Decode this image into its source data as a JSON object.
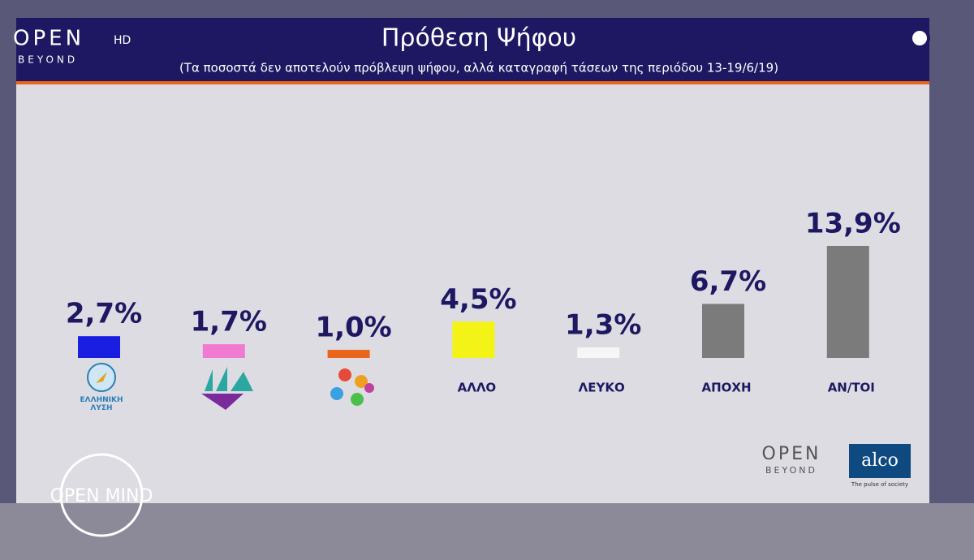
{
  "chart_data": {
    "type": "bar",
    "title": "Πρόθεση Ψήφου",
    "subtitle": "(Τα ποσοστά δεν αποτελούν πρόβλεψη ψήφου, αλλά καταγραφή τάσεων της περιόδου 13-19/6/19)",
    "categories": [
      "ΕΛΛΗΝΙΚΗ ΛΥΣΗ",
      null,
      null,
      "ΑΛΛΟ",
      "ΛΕΥΚΟ",
      "ΑΠΟΧΗ",
      "ΑΝ/ΤΟΙ"
    ],
    "values": [
      2.7,
      1.7,
      1.0,
      4.5,
      1.3,
      6.7,
      13.9
    ],
    "value_labels": [
      "2,7%",
      "1,7%",
      "1,0%",
      "4,5%",
      "1,3%",
      "6,7%",
      "13,9%"
    ],
    "colors": [
      "#1a1ee0",
      "#f07ad2",
      "#e8651a",
      "#f3f318",
      "#f6f6f6",
      "#7b7b7b",
      "#7b7b7b"
    ]
  },
  "branding": {
    "channel": "OPEN",
    "hd": "HD",
    "beyond": "BEYOND",
    "show": "OPEN MIND",
    "pollster": "alco",
    "pollster_tagline": "The pulse of society"
  }
}
